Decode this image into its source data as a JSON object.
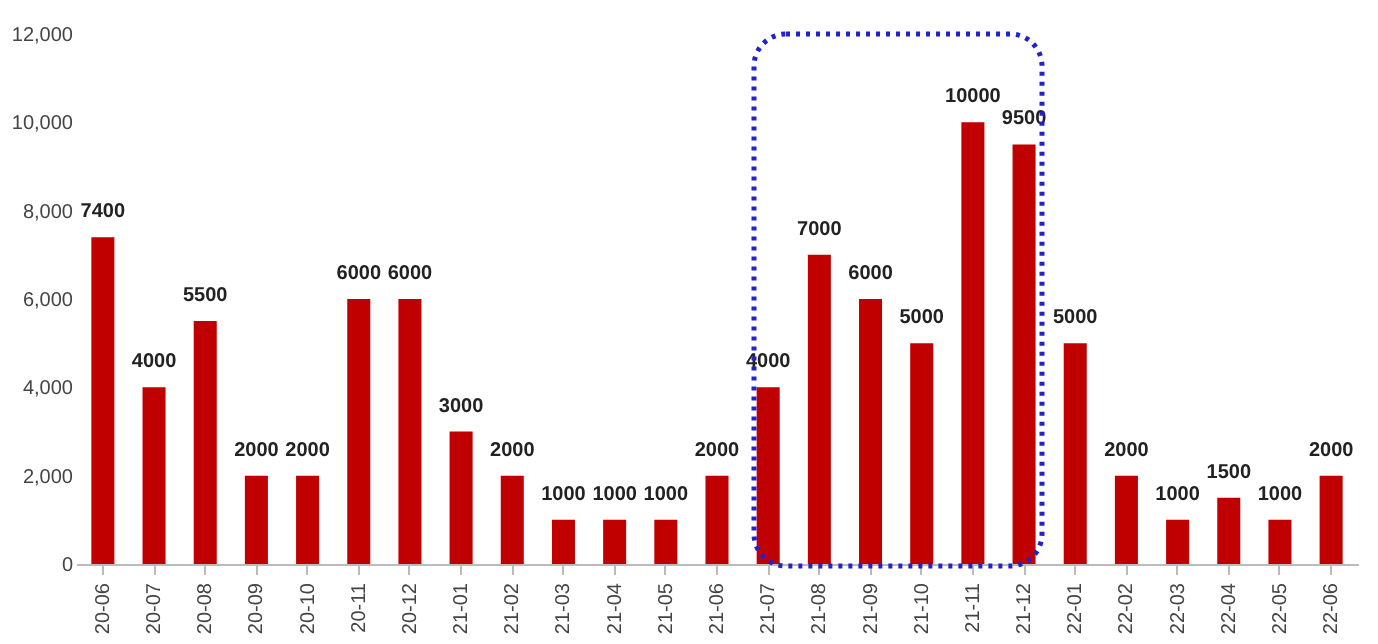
{
  "chart_data": {
    "type": "bar",
    "categories": [
      "20-06",
      "20-07",
      "20-08",
      "20-09",
      "20-10",
      "20-11",
      "20-12",
      "21-01",
      "21-02",
      "21-03",
      "21-04",
      "21-05",
      "21-06",
      "21-07",
      "21-08",
      "21-09",
      "21-10",
      "21-11",
      "21-12",
      "22-01",
      "22-02",
      "22-03",
      "22-04",
      "22-05",
      "22-06"
    ],
    "values": [
      7400,
      4000,
      5500,
      2000,
      2000,
      6000,
      6000,
      3000,
      2000,
      1000,
      1000,
      1000,
      2000,
      4000,
      7000,
      6000,
      5000,
      10000,
      9500,
      5000,
      2000,
      1000,
      1500,
      1000,
      2000
    ],
    "color": "#c00000",
    "ylim": [
      0,
      12000
    ],
    "yticks": [
      0,
      {
        "value": 2000,
        "label": "2,000"
      },
      {
        "value": 4000,
        "label": "4,000"
      },
      {
        "value": 6000,
        "label": "6,000"
      },
      {
        "value": 8000,
        "label": "8,000"
      },
      {
        "value": 10000,
        "label": "10,000"
      },
      {
        "value": 12000,
        "label": "12,000"
      }
    ],
    "data_labels": true,
    "grid": false
  }
}
